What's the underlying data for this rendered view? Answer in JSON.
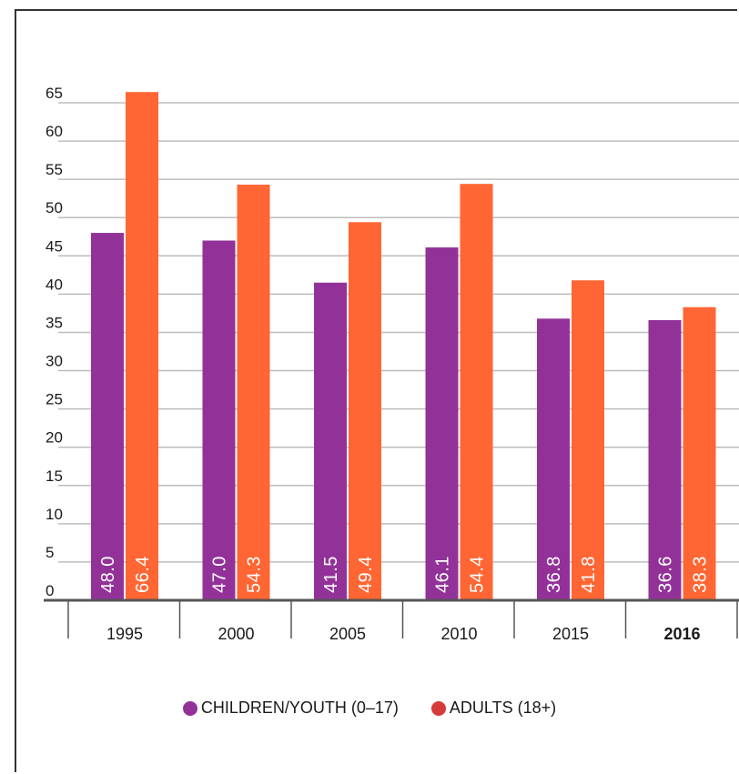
{
  "chart_data": {
    "type": "bar",
    "categories": [
      "1995",
      "2000",
      "2005",
      "2010",
      "2015",
      "2016"
    ],
    "bold_categories": [
      "2016"
    ],
    "series": [
      {
        "name": "CHILDREN/YOUTH (0–17)",
        "color": "#923298",
        "values": [
          48.0,
          47.0,
          41.5,
          46.1,
          36.8,
          36.6
        ],
        "labels": [
          "48.0",
          "47.0",
          "41.5",
          "46.1",
          "36.8",
          "36.6"
        ]
      },
      {
        "name": "ADULTS (18+)",
        "color": "#ff6633",
        "values": [
          66.4,
          54.3,
          49.4,
          54.4,
          41.8,
          38.3
        ],
        "labels": [
          "66.4",
          "54.3",
          "49.4",
          "54.4",
          "41.8",
          "38.3"
        ]
      }
    ],
    "y_ticks": [
      "0",
      "5",
      "10",
      "15",
      "20",
      "25",
      "30",
      "35",
      "40",
      "45",
      "50",
      "55",
      "60",
      "65"
    ],
    "ylim": [
      0,
      65
    ],
    "grid": true,
    "legend_position": "bottom-center",
    "legend_dot_colors": [
      "#923298",
      "#d63b3b"
    ]
  }
}
